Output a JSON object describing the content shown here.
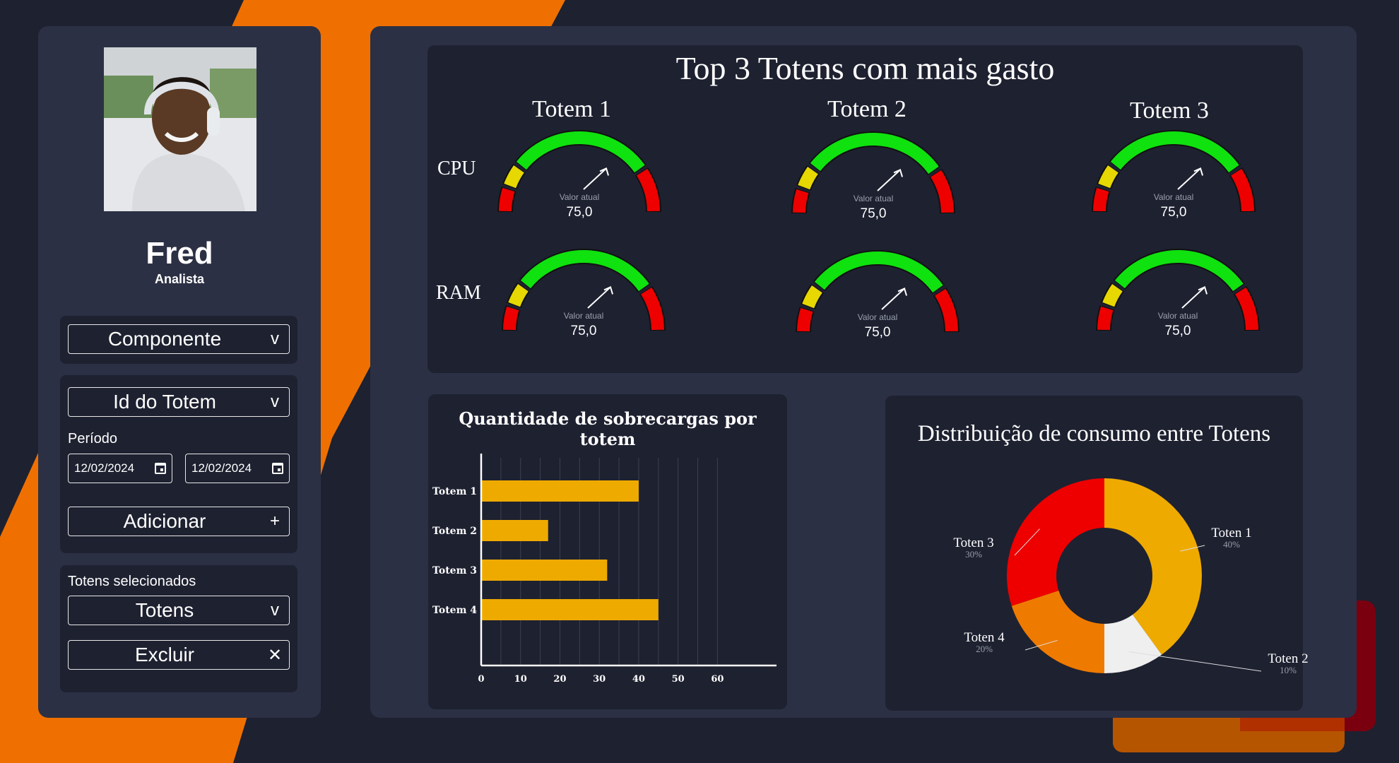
{
  "user": {
    "name": "Fred",
    "role": "Analista"
  },
  "sidebar": {
    "component_select": "Componente",
    "totem_select": "Id do Totem",
    "period_label": "Período",
    "date_start": "12/02/2024",
    "date_end": "12/02/2024",
    "add_label": "Adicionar",
    "selected_label": "Totens selecionados",
    "totens_select": "Totens",
    "delete_label": "Excluir"
  },
  "gauges": {
    "title": "Top 3 Totens com mais gasto",
    "rows": [
      "CPU",
      "RAM"
    ],
    "totems": [
      "Totem 1",
      "Totem 2",
      "Totem 3"
    ],
    "caption": "Valor atual",
    "value_text": "75,0",
    "value": 75,
    "colors": {
      "red": "#ee0000",
      "yellow": "#e6d800",
      "green": "#0fe20f"
    }
  },
  "chart_data": [
    {
      "type": "bar",
      "orientation": "horizontal",
      "title": "Quantidade de sobrecargas por totem",
      "categories": [
        "Totem 1",
        "Totem 2",
        "Totem 3",
        "Totem 4"
      ],
      "values": [
        40,
        17,
        32,
        45
      ],
      "xticks": [
        0,
        10,
        20,
        30,
        40,
        50,
        60
      ],
      "xlim": [
        0,
        75
      ],
      "grid": true,
      "color": "#efaa00"
    },
    {
      "type": "pie",
      "donut": true,
      "title": "Distribuição de consumo entre Totens",
      "slices": [
        {
          "label": "Toten 1",
          "pct_text": "40%",
          "value": 40,
          "color": "#efaa00"
        },
        {
          "label": "Toten 2",
          "pct_text": "10%",
          "value": 10,
          "color": "#efefef"
        },
        {
          "label": "Toten 4",
          "pct_text": "20%",
          "value": 20,
          "color": "#ef7a00"
        },
        {
          "label": "Toten 3",
          "pct_text": "30%",
          "value": 30,
          "color": "#ee0000"
        }
      ]
    }
  ]
}
